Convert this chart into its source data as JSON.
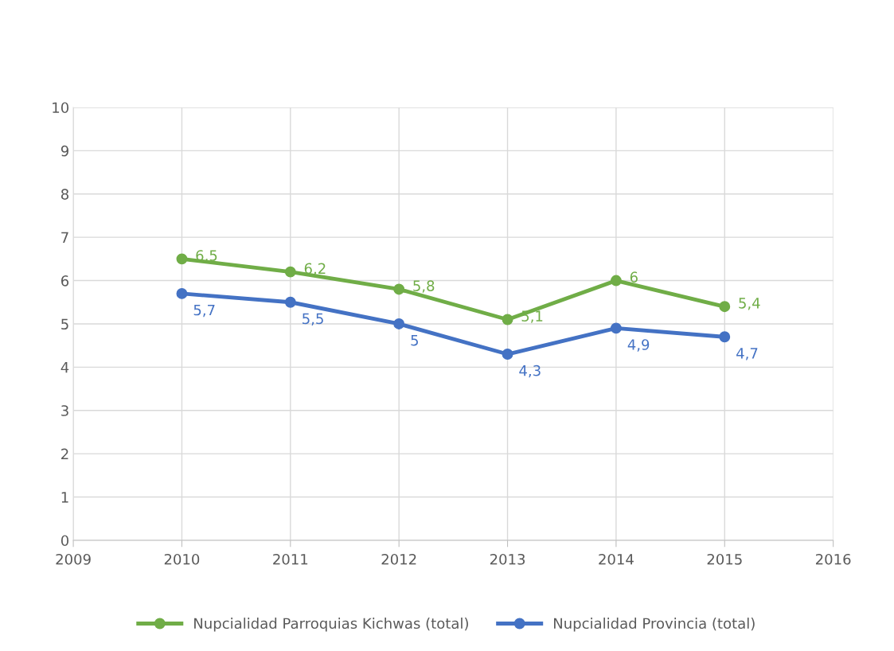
{
  "chart_data": {
    "type": "line",
    "x": [
      2010,
      2011,
      2012,
      2013,
      2014,
      2015
    ],
    "series": [
      {
        "name": "Nupcialidad Parroquias Kichwas (total)",
        "color": "#70ad47",
        "values": [
          6.5,
          6.2,
          5.8,
          5.1,
          6,
          5.4
        ],
        "value_labels": [
          "6,5",
          "6,2",
          "5,8",
          "5,1",
          "6",
          "5,4"
        ]
      },
      {
        "name": "Nupcialidad Provincia (total)",
        "color": "#4472c4",
        "values": [
          5.7,
          5.5,
          5,
          4.3,
          4.9,
          4.7
        ],
        "value_labels": [
          "5,7",
          "5,5",
          "5",
          "4,3",
          "4,9",
          "4,7"
        ]
      }
    ],
    "xlim": [
      2009,
      2016
    ],
    "xticks": [
      2009,
      2010,
      2011,
      2012,
      2013,
      2014,
      2015,
      2016
    ],
    "ylim": [
      0,
      10
    ],
    "yticks": [
      0,
      1,
      2,
      3,
      4,
      5,
      6,
      7,
      8,
      9,
      10
    ],
    "grid": true,
    "legend": "bottom",
    "marker": "circle",
    "line_style": "solid"
  }
}
